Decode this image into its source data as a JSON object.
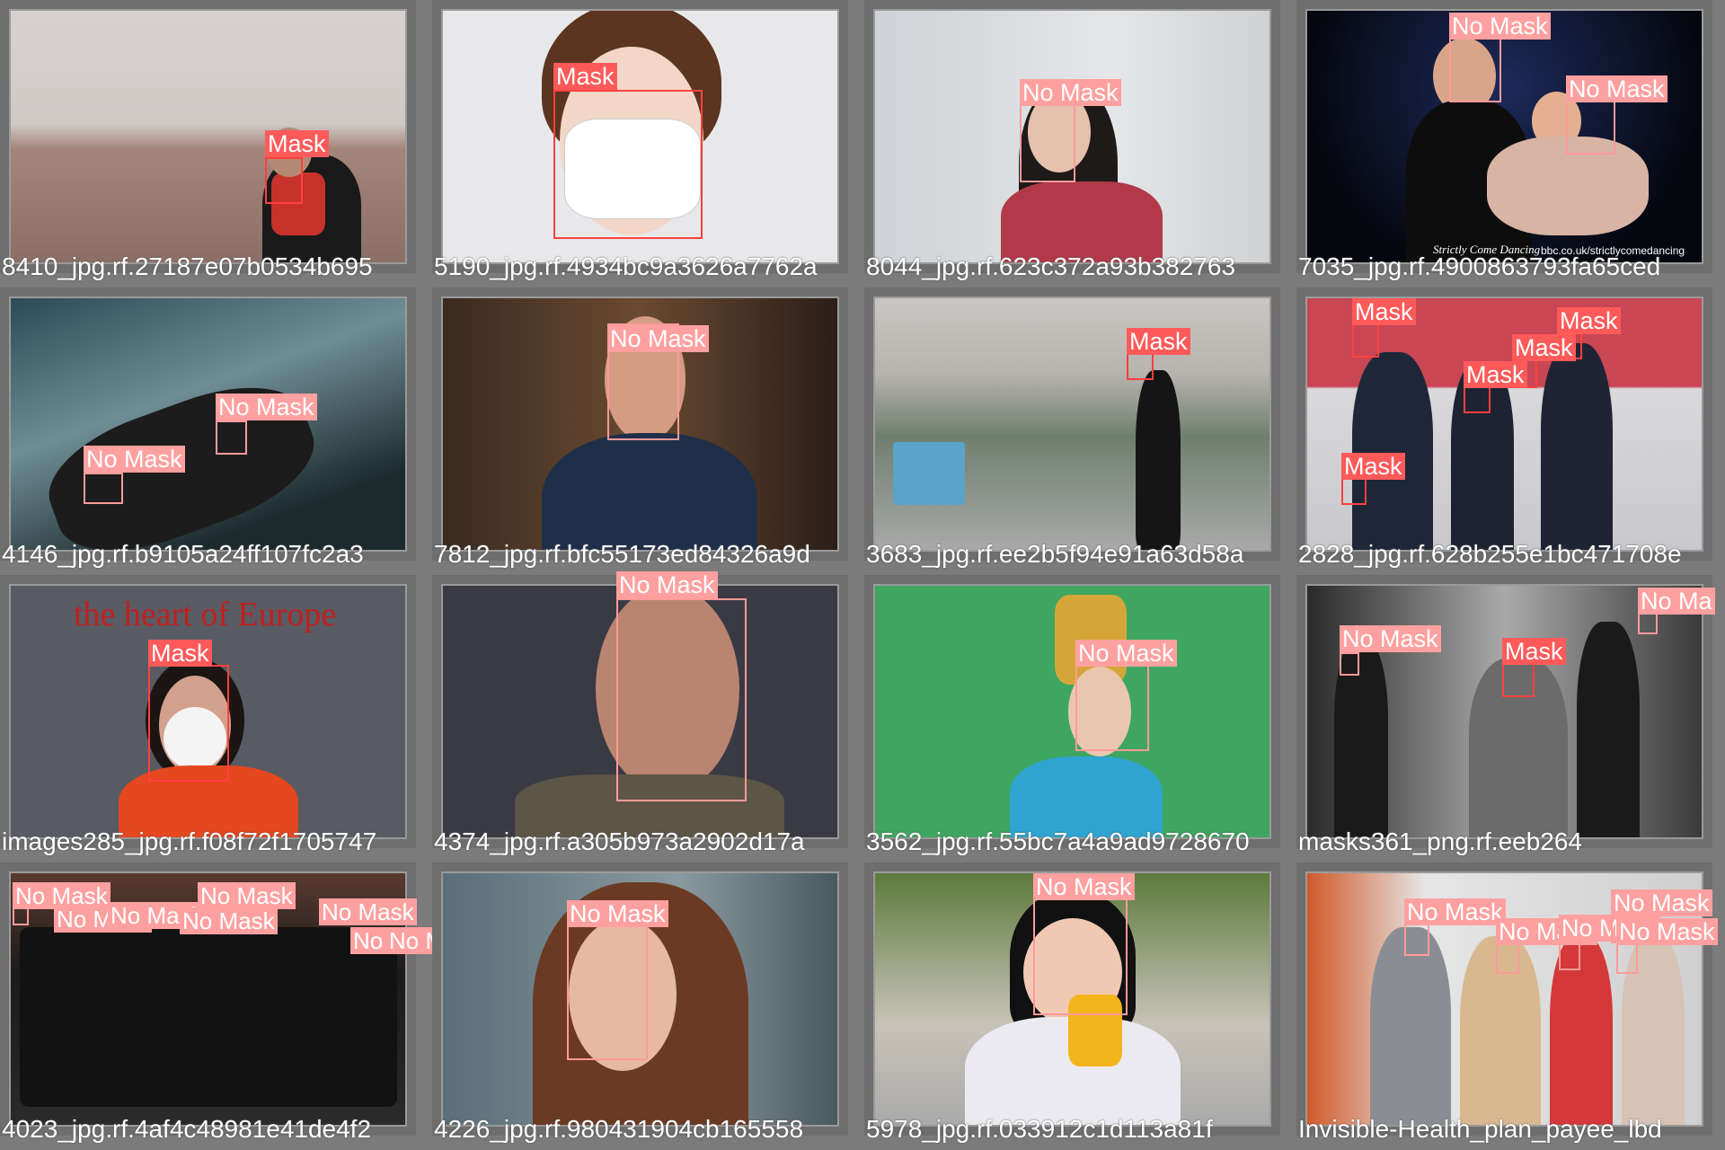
{
  "colors": {
    "mask": "#ff4040",
    "mask_label_bg": "#ff5a5a",
    "nomask": "#ff9a9a",
    "nomask_label_bg": "#ffa0a0"
  },
  "grid": [
    {
      "caption": "8410_jpg.rf.27187e07b0534b695",
      "labels": [
        "Mask"
      ]
    },
    {
      "caption": "5190_jpg.rf.4934bc9a3626a7762a",
      "labels": [
        "Mask"
      ]
    },
    {
      "caption": "8044_jpg.rf.623c372a93b382763",
      "labels": [
        "No Mask"
      ]
    },
    {
      "caption": "7035_jpg.rf.4900863793fa65ced",
      "labels": [
        "No Mask",
        "No Mask"
      ],
      "watermark_a": "Strictly Come Dancing",
      "watermark_b": "bbc.co.uk/strictlycomedancing"
    },
    {
      "caption": "4146_jpg.rf.b9105a24ff107fc2a3",
      "labels": [
        "No Mask",
        "No Mask"
      ]
    },
    {
      "caption": "7812_jpg.rf.bfc55173ed84326a9d",
      "labels": [
        "No Mask"
      ]
    },
    {
      "caption": "3683_jpg.rf.ee2b5f94e91a63d58a",
      "labels": [
        "Mask"
      ]
    },
    {
      "caption": "2828_jpg.rf.628b255e1bc471708e",
      "labels": [
        "Mask",
        "Mask",
        "Mask",
        "Mask",
        "Mask"
      ]
    },
    {
      "caption": "images285_jpg.rf.f08f72f1705747",
      "labels": [
        "Mask"
      ],
      "sign": "the heart of Europe"
    },
    {
      "caption": "4374_jpg.rf.a305b973a2902d17a",
      "labels": [
        "No Mask"
      ]
    },
    {
      "caption": "3562_jpg.rf.55bc7a4a9ad9728670",
      "labels": [
        "No Mask"
      ]
    },
    {
      "caption": "masks361_png.rf.eeb264",
      "labels": [
        "No Mask",
        "Mask",
        "No Ma"
      ]
    },
    {
      "caption": "4023_jpg.rf.4af4c48981e41de4f2",
      "labels": [
        "No Mask",
        "No Mask",
        "No Mask",
        "No Mask",
        "No Mask",
        "No Mask",
        "No Mask",
        "No Mask"
      ]
    },
    {
      "caption": "4226_jpg.rf.980431904cb165558",
      "labels": [
        "No Mask"
      ]
    },
    {
      "caption": "5978_jpg.rf.033912c1d113a81f",
      "labels": [
        "No Mask"
      ]
    },
    {
      "caption": "Invisible-Health_plan_payee_lbd",
      "labels": [
        "No Mask",
        "No Mask",
        "No Mask",
        "No Mask",
        "No Mask"
      ]
    }
  ]
}
